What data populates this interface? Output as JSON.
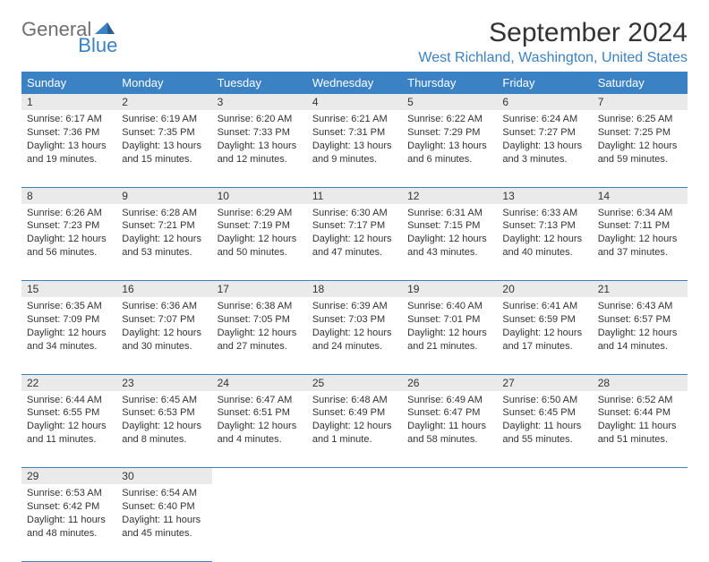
{
  "logo": {
    "general": "General",
    "blue": "Blue"
  },
  "title": {
    "month_year": "September 2024",
    "location": "West Richland, Washington, United States"
  },
  "colors": {
    "header_bg": "#3b82c4",
    "text": "#333333",
    "accent": "#3b82c4",
    "daynum_bg": "#eaeaea"
  },
  "day_headers": [
    "Sunday",
    "Monday",
    "Tuesday",
    "Wednesday",
    "Thursday",
    "Friday",
    "Saturday"
  ],
  "weeks": [
    [
      {
        "num": "1",
        "sunrise": "Sunrise: 6:17 AM",
        "sunset": "Sunset: 7:36 PM",
        "daylight1": "Daylight: 13 hours",
        "daylight2": "and 19 minutes."
      },
      {
        "num": "2",
        "sunrise": "Sunrise: 6:19 AM",
        "sunset": "Sunset: 7:35 PM",
        "daylight1": "Daylight: 13 hours",
        "daylight2": "and 15 minutes."
      },
      {
        "num": "3",
        "sunrise": "Sunrise: 6:20 AM",
        "sunset": "Sunset: 7:33 PM",
        "daylight1": "Daylight: 13 hours",
        "daylight2": "and 12 minutes."
      },
      {
        "num": "4",
        "sunrise": "Sunrise: 6:21 AM",
        "sunset": "Sunset: 7:31 PM",
        "daylight1": "Daylight: 13 hours",
        "daylight2": "and 9 minutes."
      },
      {
        "num": "5",
        "sunrise": "Sunrise: 6:22 AM",
        "sunset": "Sunset: 7:29 PM",
        "daylight1": "Daylight: 13 hours",
        "daylight2": "and 6 minutes."
      },
      {
        "num": "6",
        "sunrise": "Sunrise: 6:24 AM",
        "sunset": "Sunset: 7:27 PM",
        "daylight1": "Daylight: 13 hours",
        "daylight2": "and 3 minutes."
      },
      {
        "num": "7",
        "sunrise": "Sunrise: 6:25 AM",
        "sunset": "Sunset: 7:25 PM",
        "daylight1": "Daylight: 12 hours",
        "daylight2": "and 59 minutes."
      }
    ],
    [
      {
        "num": "8",
        "sunrise": "Sunrise: 6:26 AM",
        "sunset": "Sunset: 7:23 PM",
        "daylight1": "Daylight: 12 hours",
        "daylight2": "and 56 minutes."
      },
      {
        "num": "9",
        "sunrise": "Sunrise: 6:28 AM",
        "sunset": "Sunset: 7:21 PM",
        "daylight1": "Daylight: 12 hours",
        "daylight2": "and 53 minutes."
      },
      {
        "num": "10",
        "sunrise": "Sunrise: 6:29 AM",
        "sunset": "Sunset: 7:19 PM",
        "daylight1": "Daylight: 12 hours",
        "daylight2": "and 50 minutes."
      },
      {
        "num": "11",
        "sunrise": "Sunrise: 6:30 AM",
        "sunset": "Sunset: 7:17 PM",
        "daylight1": "Daylight: 12 hours",
        "daylight2": "and 47 minutes."
      },
      {
        "num": "12",
        "sunrise": "Sunrise: 6:31 AM",
        "sunset": "Sunset: 7:15 PM",
        "daylight1": "Daylight: 12 hours",
        "daylight2": "and 43 minutes."
      },
      {
        "num": "13",
        "sunrise": "Sunrise: 6:33 AM",
        "sunset": "Sunset: 7:13 PM",
        "daylight1": "Daylight: 12 hours",
        "daylight2": "and 40 minutes."
      },
      {
        "num": "14",
        "sunrise": "Sunrise: 6:34 AM",
        "sunset": "Sunset: 7:11 PM",
        "daylight1": "Daylight: 12 hours",
        "daylight2": "and 37 minutes."
      }
    ],
    [
      {
        "num": "15",
        "sunrise": "Sunrise: 6:35 AM",
        "sunset": "Sunset: 7:09 PM",
        "daylight1": "Daylight: 12 hours",
        "daylight2": "and 34 minutes."
      },
      {
        "num": "16",
        "sunrise": "Sunrise: 6:36 AM",
        "sunset": "Sunset: 7:07 PM",
        "daylight1": "Daylight: 12 hours",
        "daylight2": "and 30 minutes."
      },
      {
        "num": "17",
        "sunrise": "Sunrise: 6:38 AM",
        "sunset": "Sunset: 7:05 PM",
        "daylight1": "Daylight: 12 hours",
        "daylight2": "and 27 minutes."
      },
      {
        "num": "18",
        "sunrise": "Sunrise: 6:39 AM",
        "sunset": "Sunset: 7:03 PM",
        "daylight1": "Daylight: 12 hours",
        "daylight2": "and 24 minutes."
      },
      {
        "num": "19",
        "sunrise": "Sunrise: 6:40 AM",
        "sunset": "Sunset: 7:01 PM",
        "daylight1": "Daylight: 12 hours",
        "daylight2": "and 21 minutes."
      },
      {
        "num": "20",
        "sunrise": "Sunrise: 6:41 AM",
        "sunset": "Sunset: 6:59 PM",
        "daylight1": "Daylight: 12 hours",
        "daylight2": "and 17 minutes."
      },
      {
        "num": "21",
        "sunrise": "Sunrise: 6:43 AM",
        "sunset": "Sunset: 6:57 PM",
        "daylight1": "Daylight: 12 hours",
        "daylight2": "and 14 minutes."
      }
    ],
    [
      {
        "num": "22",
        "sunrise": "Sunrise: 6:44 AM",
        "sunset": "Sunset: 6:55 PM",
        "daylight1": "Daylight: 12 hours",
        "daylight2": "and 11 minutes."
      },
      {
        "num": "23",
        "sunrise": "Sunrise: 6:45 AM",
        "sunset": "Sunset: 6:53 PM",
        "daylight1": "Daylight: 12 hours",
        "daylight2": "and 8 minutes."
      },
      {
        "num": "24",
        "sunrise": "Sunrise: 6:47 AM",
        "sunset": "Sunset: 6:51 PM",
        "daylight1": "Daylight: 12 hours",
        "daylight2": "and 4 minutes."
      },
      {
        "num": "25",
        "sunrise": "Sunrise: 6:48 AM",
        "sunset": "Sunset: 6:49 PM",
        "daylight1": "Daylight: 12 hours",
        "daylight2": "and 1 minute."
      },
      {
        "num": "26",
        "sunrise": "Sunrise: 6:49 AM",
        "sunset": "Sunset: 6:47 PM",
        "daylight1": "Daylight: 11 hours",
        "daylight2": "and 58 minutes."
      },
      {
        "num": "27",
        "sunrise": "Sunrise: 6:50 AM",
        "sunset": "Sunset: 6:45 PM",
        "daylight1": "Daylight: 11 hours",
        "daylight2": "and 55 minutes."
      },
      {
        "num": "28",
        "sunrise": "Sunrise: 6:52 AM",
        "sunset": "Sunset: 6:44 PM",
        "daylight1": "Daylight: 11 hours",
        "daylight2": "and 51 minutes."
      }
    ],
    [
      {
        "num": "29",
        "sunrise": "Sunrise: 6:53 AM",
        "sunset": "Sunset: 6:42 PM",
        "daylight1": "Daylight: 11 hours",
        "daylight2": "and 48 minutes."
      },
      {
        "num": "30",
        "sunrise": "Sunrise: 6:54 AM",
        "sunset": "Sunset: 6:40 PM",
        "daylight1": "Daylight: 11 hours",
        "daylight2": "and 45 minutes."
      },
      null,
      null,
      null,
      null,
      null
    ]
  ]
}
